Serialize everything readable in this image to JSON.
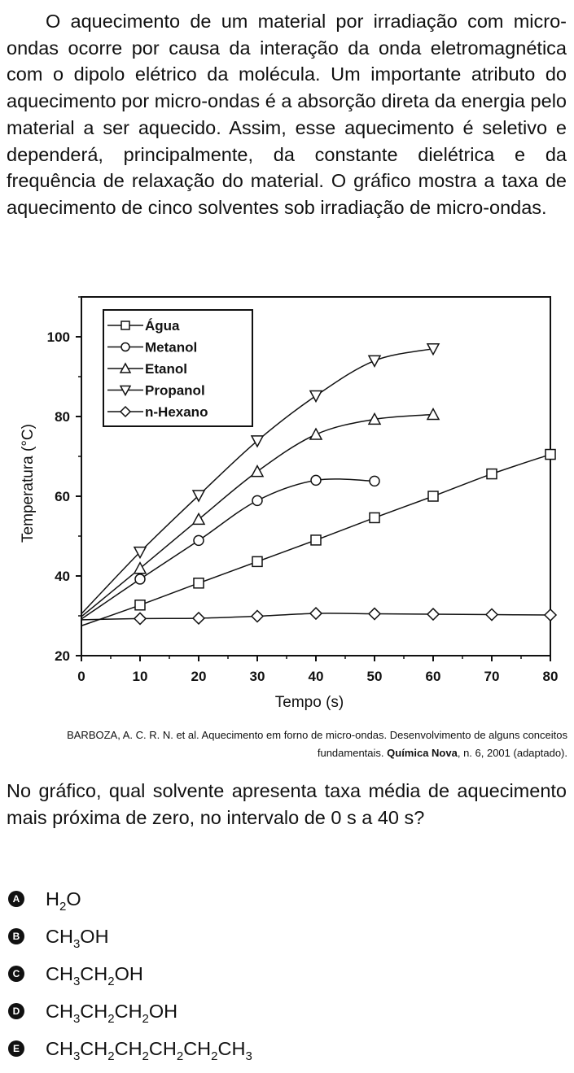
{
  "intro_text": "O aquecimento de um material por irradiação com micro-ondas ocorre por causa da interação da onda eletromagnética com o dipolo elétrico da molécula. Um importante atributo do aquecimento por micro-ondas é a absorção direta da energia pelo material a ser aquecido. Assim, esse aquecimento é seletivo e dependerá, principalmente, da constante dielétrica e da frequência de relaxação do material. O gráfico mostra a taxa de aquecimento de cinco solventes sob irradiação de micro-ondas.",
  "chart_data": {
    "type": "line",
    "title": "",
    "xlabel": "Tempo (s)",
    "ylabel": "Temperatura (°C)",
    "xlim": [
      0,
      80
    ],
    "ylim": [
      20,
      110
    ],
    "x_ticks": [
      "0",
      "10",
      "20",
      "30",
      "40",
      "50",
      "60",
      "70",
      "80"
    ],
    "y_ticks": [
      "20",
      "40",
      "60",
      "80",
      "100"
    ],
    "grid": false,
    "legend_position": "top-left",
    "series": [
      {
        "name": "Água",
        "marker": "square",
        "x": [
          10,
          20,
          30,
          40,
          50,
          60,
          70,
          80
        ],
        "y": [
          32.7,
          38.2,
          43.6,
          49.0,
          54.6,
          60.0,
          65.6,
          70.5
        ]
      },
      {
        "name": "Metanol",
        "marker": "circle",
        "x": [
          10,
          20,
          30,
          40,
          50
        ],
        "y": [
          39.2,
          48.9,
          58.9,
          64.0,
          63.8
        ]
      },
      {
        "name": "Etanol",
        "marker": "triangle-up",
        "x": [
          10,
          20,
          30,
          40,
          50,
          60
        ],
        "y": [
          41.9,
          54.2,
          66.2,
          75.5,
          79.3,
          80.5
        ]
      },
      {
        "name": "Propanol",
        "marker": "triangle-down",
        "x": [
          10,
          20,
          30,
          40,
          50,
          60
        ],
        "y": [
          46.0,
          60.2,
          73.9,
          85.2,
          94.0,
          97.0
        ]
      },
      {
        "name": "n-Hexano",
        "marker": "diamond",
        "x": [
          10,
          20,
          30,
          40,
          50,
          60,
          70,
          80
        ],
        "y": [
          29.3,
          29.4,
          29.9,
          30.6,
          30.5,
          30.4,
          30.3,
          30.2
        ]
      }
    ]
  },
  "source": {
    "text_1": "BARBOZA, A. C. R. N. et al. Aquecimento em forno de micro-ondas. Desenvolvimento de alguns conceitos fundamentais. ",
    "journal": "Química Nova",
    "text_2": ", n. 6, 2001 (adaptado)."
  },
  "question": "No gráfico, qual solvente apresenta taxa média de aquecimento mais próxima de zero, no intervalo de 0 s a 40 s?",
  "options": [
    {
      "letter": "A",
      "parts": [
        [
          "H",
          ""
        ],
        [
          "O",
          "2"
        ]
      ]
    },
    {
      "letter": "B",
      "parts": [
        [
          "CH",
          ""
        ],
        [
          "OH",
          "3"
        ]
      ]
    },
    {
      "letter": "C",
      "parts": [
        [
          "CH",
          ""
        ],
        [
          "CH",
          "3"
        ],
        [
          "OH",
          "2"
        ]
      ]
    },
    {
      "letter": "D",
      "parts": [
        [
          "CH",
          ""
        ],
        [
          "CH",
          "3"
        ],
        [
          "CH",
          "2"
        ],
        [
          "OH",
          "2"
        ]
      ]
    },
    {
      "letter": "E",
      "parts": [
        [
          "CH",
          ""
        ],
        [
          "CH",
          "3"
        ],
        [
          "CH",
          "2"
        ],
        [
          "CH",
          "2"
        ],
        [
          "CH",
          "2"
        ],
        [
          "CH",
          "2"
        ],
        [
          "",
          "3"
        ]
      ]
    }
  ]
}
